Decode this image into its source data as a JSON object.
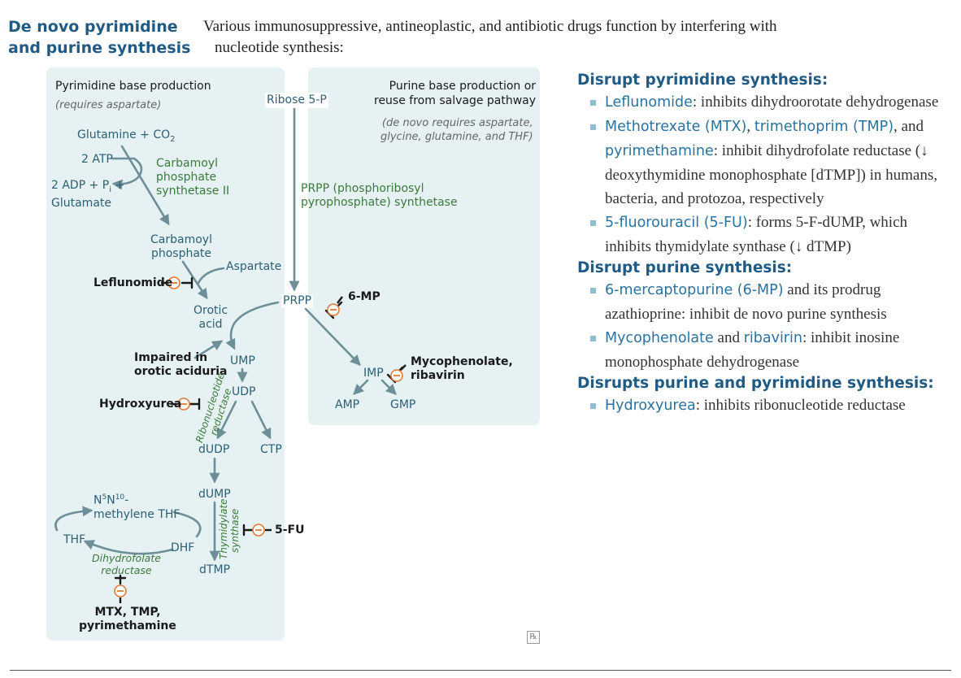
{
  "header": {
    "title_line1": "De novo pyrimidine",
    "title_line2": "and purine synthesis",
    "intro_line1": "Various immunosuppressive, antineoplastic, and antibiotic drugs function by interfering with",
    "intro_line2": "nucleotide synthesis:"
  },
  "pyrimidine_panel": {
    "title": "Pyrimidine base production",
    "subtitle": "(requires aspartate)",
    "glutamine_co2": "Glutamine + CO",
    "co2_sub": "2",
    "atp": "2 ATP",
    "adp_line1a": "2 ADP + P",
    "adp_sub": "i",
    "adp_line1b": " +",
    "adp_line2": "Glutamate",
    "cps_line1": "Carbamoyl",
    "cps_line2": "phosphate",
    "cps_line3": "synthetase II",
    "carbamoyl_line1": "Carbamoyl",
    "carbamoyl_line2": "phosphate",
    "aspartate": "Aspartate",
    "leflunomide": "Leflunomide",
    "orotic_line1": "Orotic",
    "orotic_line2": "acid",
    "impaired_line1": "Impaired in",
    "impaired_line2": "orotic aciduria",
    "ump": "UMP",
    "udp": "UDP",
    "ribonucleotide_line1": "Ribonucleotide",
    "ribonucleotide_line2": "reductase",
    "hydroxyurea": "Hydroxyurea",
    "dudp": "dUDP",
    "ctp": "CTP",
    "dump": "dUMP",
    "n5n10_a": "N",
    "n5n10_sup1": "5",
    "n5n10_b": "N",
    "n5n10_sup2": "10",
    "n5n10_c": "-",
    "methylene_thf": "methylene THF",
    "thf": "THF",
    "dhf": "DHF",
    "thymidylate_line1": "Thymidylate",
    "thymidylate_line2": "synthase",
    "fu": "5-FU",
    "dtmp": "dTMP",
    "dhfr_line1": "Dihydrofolate",
    "dhfr_line2": "reductase",
    "mtx_line1": "MTX, TMP,",
    "mtx_line2": "pyrimethamine"
  },
  "purine_panel": {
    "title_line1": "Purine base production or",
    "title_line2": "reuse from salvage pathway",
    "subtitle_line1": "(de novo requires aspartate,",
    "subtitle_line2": "glycine, glutamine, and THF)",
    "ribose": "Ribose 5-P",
    "prpp_synthetase_line1": "PRPP (phosphoribosyl",
    "prpp_synthetase_line2": "pyrophosphate) synthetase",
    "prpp": "PRPP",
    "six_mp": "6-MP",
    "imp": "IMP",
    "mycophenolate_line1": "Mycophenolate,",
    "mycophenolate_line2": "ribavirin",
    "amp": "AMP",
    "gmp": "GMP"
  },
  "right_column": {
    "sections": [
      {
        "heading": "Disrupt pyrimidine synthesis:",
        "items": [
          {
            "drugs": [
              "Leflunomide"
            ],
            "text": ": inhibits dihydroorotate dehydrogenase"
          },
          {
            "text": "Methotrexate (MTX), trimethoprim (TMP), and pyrimethamine: inhibit dihydrofolate reductase (↓ deoxythymidine monophosphate [dTMP]) in humans, bacteria, and protozoa, respectively"
          },
          {
            "text": "5-fluorouracil (5-FU): forms 5-F-dUMP, which inhibits thymidylate synthase (↓ dTMP)"
          }
        ]
      },
      {
        "heading": "Disrupt purine synthesis:",
        "items": [
          {
            "text": "6-mercaptopurine (6-MP) and its prodrug azathioprine: inhibit de novo purine synthesis"
          },
          {
            "text": "Mycophenolate and ribavirin: inhibit inosine monophosphate dehydrogenase"
          }
        ]
      },
      {
        "heading": "Disrupts purine and pyrimidine synthesis:",
        "items": [
          {
            "text": "Hydroxyurea: inhibits ribonucleotide reductase"
          }
        ]
      }
    ],
    "drug_names": [
      "Leflunomide",
      "Methotrexate (MTX)",
      "trimethoprim (TMP)",
      "pyrimethamine",
      "5-fluorouracil (5-FU)",
      "6-mercaptopurine (6-MP)",
      "Mycophenolate",
      "ribavirin",
      "Hydroxyurea"
    ]
  },
  "footer": {
    "rx_icon": "℞"
  },
  "colors": {
    "accent": "#1f5b85",
    "arrow": "#6e8f98",
    "panel": "#e5f1f3",
    "enzyme": "#3c7a3a",
    "inhibitor": "#e07b3a"
  }
}
